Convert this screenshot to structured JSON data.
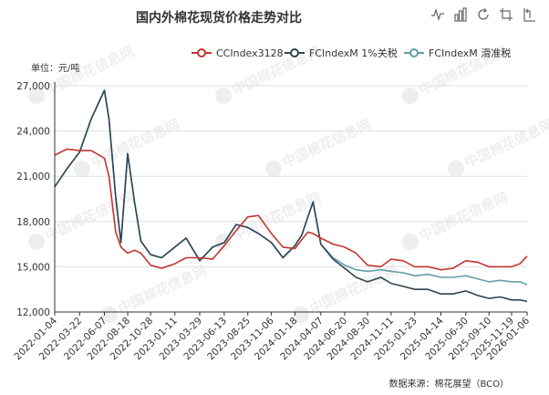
{
  "toolbox": {
    "icons": [
      "line-switch-icon",
      "bar-switch-icon",
      "restore-icon",
      "zoom-select-icon",
      "zoom-back-icon"
    ]
  },
  "source_note": "数据来源：棉花展望（BCO）",
  "watermark": "中国棉花信息网",
  "chart_data": {
    "type": "line",
    "title": "国内外棉花现货价格走势对比",
    "ylabel": "单位：元/吨",
    "xlabel": "",
    "ylim": [
      12000,
      27000
    ],
    "yticks": [
      12000,
      15000,
      18000,
      21000,
      24000,
      27000
    ],
    "ytick_labels": [
      "12,000",
      "15,000",
      "18,000",
      "21,000",
      "24,000",
      "27,000"
    ],
    "xtick_labels": [
      "2022-01-04",
      "2022-03-22",
      "2022-06-07",
      "2022-08-18",
      "2022-10-28",
      "2023-01-11",
      "2023-03-29",
      "2023-06-13",
      "2023-08-25",
      "2023-11-06",
      "2024-01-18",
      "2024-04-07",
      "2024-06-20",
      "2024-08-30",
      "2024-11-11",
      "2025-01-23",
      "2025-04-14",
      "2025-06-30",
      "2025-09-10",
      "2025-11-19",
      "2026-01-06"
    ],
    "grid": true,
    "legend_position": "top-right",
    "colors": {
      "cc": "#c23531",
      "fc1": "#2f4554",
      "fc2": "#61a0a8"
    },
    "x": [
      "2022-01-04",
      "2022-02-11",
      "2022-03-22",
      "2022-04-27",
      "2022-06-07",
      "2022-06-21",
      "2022-07-12",
      "2022-07-28",
      "2022-08-18",
      "2022-09-08",
      "2022-09-28",
      "2022-10-28",
      "2022-12-01",
      "2023-01-11",
      "2023-02-15",
      "2023-03-29",
      "2023-05-08",
      "2023-06-13",
      "2023-07-20",
      "2023-08-25",
      "2023-09-27",
      "2023-11-06",
      "2023-12-12",
      "2024-01-18",
      "2024-02-08",
      "2024-02-27",
      "2024-03-14",
      "2024-04-07",
      "2024-05-15",
      "2024-06-20",
      "2024-07-25",
      "2024-08-30",
      "2024-10-10",
      "2024-11-11",
      "2024-12-18",
      "2025-01-23",
      "2025-03-05",
      "2025-04-14",
      "2025-05-22",
      "2025-06-30",
      "2025-08-05",
      "2025-09-10",
      "2025-10-15",
      "2025-11-19",
      "2025-12-15",
      "2026-01-06"
    ],
    "series": [
      {
        "name": "CCIndex3128",
        "values": [
          22400,
          22800,
          22700,
          22700,
          22200,
          21000,
          17300,
          16300,
          15900,
          16100,
          15900,
          15100,
          14900,
          15200,
          15600,
          15600,
          15500,
          16400,
          17400,
          18300,
          18400,
          17200,
          16300,
          16200,
          16800,
          17300,
          17200,
          16900,
          16500,
          16300,
          15900,
          15100,
          15000,
          15500,
          15400,
          15000,
          15000,
          14800,
          14900,
          15400,
          15300,
          15000,
          15000,
          15000,
          15200,
          15700
        ]
      },
      {
        "name": "FCIndexM 1%关税",
        "values": [
          20300,
          21500,
          22600,
          24800,
          26700,
          24800,
          19600,
          16600,
          22500,
          19300,
          16700,
          15800,
          15600,
          16300,
          16900,
          15400,
          16300,
          16600,
          17800,
          17600,
          17200,
          16600,
          15600,
          16400,
          17100,
          18300,
          19300,
          16500,
          15500,
          14900,
          14300,
          14000,
          14300,
          13900,
          13700,
          13500,
          13500,
          13200,
          13200,
          13400,
          13100,
          12900,
          13000,
          12800,
          12800,
          12700
        ]
      },
      {
        "name": "FCIndexM 滑准税",
        "values": [
          20300,
          21500,
          22600,
          24800,
          26700,
          24800,
          19600,
          16600,
          22500,
          19300,
          16700,
          15800,
          15600,
          16300,
          16900,
          15400,
          16300,
          16600,
          17800,
          17600,
          17200,
          16600,
          15600,
          16400,
          17100,
          18300,
          19300,
          16500,
          15600,
          15100,
          14800,
          14700,
          14800,
          14700,
          14600,
          14400,
          14500,
          14300,
          14300,
          14400,
          14200,
          14000,
          14100,
          14000,
          14000,
          13800
        ]
      }
    ]
  }
}
